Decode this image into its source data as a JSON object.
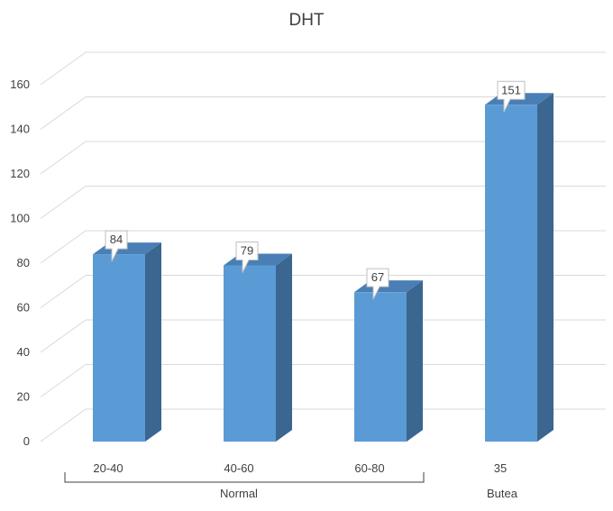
{
  "chart_data": {
    "type": "bar",
    "title": "DHT",
    "categories": [
      "20-40",
      "40-60",
      "60-80",
      "35"
    ],
    "groups": [
      {
        "label": "Normal",
        "categories": [
          "20-40",
          "40-60",
          "60-80"
        ]
      },
      {
        "label": "Butea",
        "categories": [
          "35"
        ]
      }
    ],
    "values": [
      84,
      79,
      67,
      151
    ],
    "data_labels": [
      "84",
      "79",
      "67",
      "151"
    ],
    "ylim": [
      0,
      160
    ],
    "yticks": [
      "0",
      "20",
      "40",
      "60",
      "80",
      "100",
      "120",
      "140",
      "160"
    ],
    "grid": true,
    "style": "3d-column",
    "colors": {
      "front": "#5b9bd5",
      "side": "#3a6690",
      "top": "#4a7fb5",
      "grid": "#d9d9d9"
    }
  }
}
